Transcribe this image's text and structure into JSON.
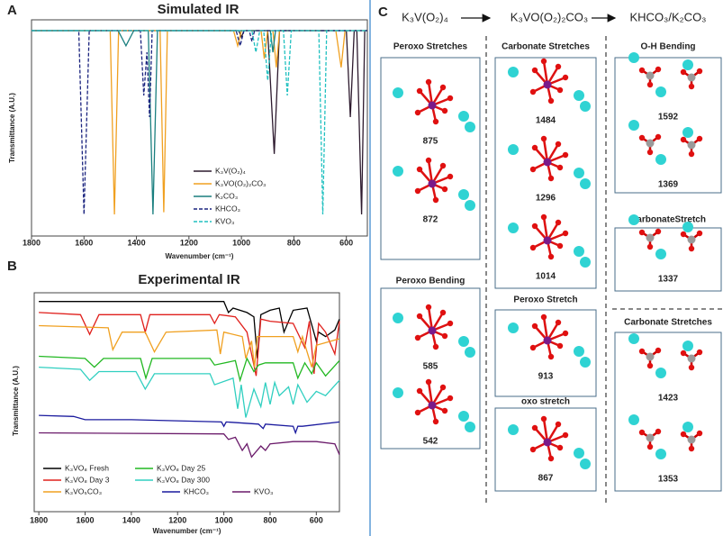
{
  "chart_data": [
    {
      "type": "line",
      "panel_label": "A",
      "title": "Simulated IR",
      "x_label": "Wavenumber (cm⁻¹)",
      "y_label": "Transmittance (A.U.)",
      "xlim": [
        1800,
        520
      ],
      "ylim": [
        0,
        1
      ],
      "xticks": [
        1800,
        1600,
        1400,
        1200,
        1000,
        800,
        600
      ],
      "series": [
        {
          "name": "K₃V(O₂)₄",
          "color": "#2d1a2e",
          "dash": false,
          "x": [
            1800,
            1010,
            1000,
            990,
            900,
            875,
            855,
            600,
            585,
            570,
            560,
            542,
            530,
            520
          ],
          "values": [
            0.95,
            0.95,
            0.92,
            0.95,
            0.95,
            0.38,
            0.95,
            0.95,
            0.55,
            0.95,
            0.95,
            0.1,
            0.95,
            0.95
          ]
        },
        {
          "name": "K₃VO(O₂)₂CO₃",
          "color": "#f0a020",
          "dash": false,
          "x": [
            1800,
            1500,
            1484,
            1468,
            1310,
            1296,
            1282,
            1030,
            1014,
            1000,
            925,
            913,
            900,
            880,
            867,
            855,
            640,
            620,
            605,
            520
          ],
          "values": [
            0.95,
            0.95,
            0.1,
            0.95,
            0.95,
            0.11,
            0.95,
            0.95,
            0.88,
            0.95,
            0.95,
            0.82,
            0.95,
            0.95,
            0.78,
            0.95,
            0.95,
            0.78,
            0.95,
            0.95
          ]
        },
        {
          "name": "K₂CO₃",
          "color": "#1a7f7f",
          "dash": false,
          "x": [
            1800,
            1470,
            1440,
            1410,
            1355,
            1337,
            1320,
            890,
            880,
            870,
            520
          ],
          "values": [
            0.95,
            0.95,
            0.88,
            0.95,
            0.95,
            0.1,
            0.95,
            0.95,
            0.85,
            0.95,
            0.95
          ]
        },
        {
          "name": "KHCO₃",
          "color": "#1a237e",
          "dash": true,
          "x": [
            1800,
            1620,
            1600,
            1580,
            1385,
            1372,
            1360,
            1350,
            1340,
            1020,
            1005,
            990,
            970,
            960,
            950,
            520
          ],
          "values": [
            0.95,
            0.95,
            0.1,
            0.95,
            0.95,
            0.65,
            0.85,
            0.55,
            0.95,
            0.95,
            0.88,
            0.95,
            0.95,
            0.9,
            0.95,
            0.95
          ]
        },
        {
          "name": "KVO₃",
          "color": "#20c0c0",
          "dash": true,
          "x": [
            1800,
            960,
            945,
            930,
            915,
            900,
            885,
            840,
            825,
            810,
            705,
            690,
            675,
            520
          ],
          "values": [
            0.95,
            0.95,
            0.85,
            0.95,
            0.95,
            0.72,
            0.95,
            0.95,
            0.65,
            0.95,
            0.95,
            0.1,
            0.95,
            0.95
          ]
        }
      ]
    },
    {
      "type": "line",
      "panel_label": "B",
      "title": "Experimental IR",
      "x_label": "Wavenumber (cm⁻¹)",
      "y_label": "Transmittance (A.U.)",
      "xlim": [
        1820,
        500
      ],
      "ylim": [
        0,
        10
      ],
      "xticks": [
        1800,
        1600,
        1400,
        1200,
        1000,
        800,
        600
      ],
      "series": [
        {
          "name": "K₃VO₈ Fresh",
          "color": "#000000",
          "dash": false,
          "x": [
            1800,
            1000,
            980,
            960,
            900,
            870,
            855,
            840,
            800,
            760,
            740,
            700,
            640,
            600,
            590,
            560,
            520,
            500
          ],
          "values": [
            9.6,
            9.6,
            9.1,
            9.3,
            9.1,
            8.9,
            7.0,
            9.0,
            9.2,
            9.3,
            8.2,
            9.2,
            9.3,
            7.8,
            8.2,
            8.0,
            8.3,
            8.8
          ]
        },
        {
          "name": "K₃VO₈ Day 3",
          "color": "#e0201c",
          "dash": false,
          "x": [
            1800,
            1620,
            1580,
            1540,
            1360,
            1340,
            1320,
            1060,
            1040,
            1020,
            950,
            900,
            860,
            840,
            800,
            700,
            650,
            630,
            610,
            590,
            560,
            520,
            500
          ],
          "values": [
            9.1,
            9.0,
            8.1,
            9.0,
            9.0,
            8.2,
            9.0,
            9.0,
            8.6,
            9.0,
            8.9,
            8.2,
            6.2,
            8.8,
            8.7,
            8.6,
            7.5,
            8.7,
            6.3,
            8.6,
            8.2,
            7.2,
            8.7
          ]
        },
        {
          "name": "K₃VO₅CO₃",
          "color": "#f0a020",
          "dash": false,
          "x": [
            1800,
            1500,
            1480,
            1440,
            1340,
            1300,
            1250,
            1030,
            1015,
            1000,
            920,
            905,
            880,
            867,
            855,
            700,
            680,
            660,
            620,
            600,
            500
          ],
          "values": [
            8.5,
            8.4,
            7.4,
            8.2,
            8.2,
            7.3,
            8.2,
            8.3,
            7.2,
            8.2,
            8.0,
            7.0,
            7.8,
            6.6,
            8.0,
            8.0,
            7.3,
            8.0,
            6.6,
            7.6,
            7.9
          ]
        },
        {
          "name": "K₃VO₈ Day 25",
          "color": "#22b822",
          "dash": false,
          "x": [
            1800,
            1600,
            1560,
            1520,
            1360,
            1337,
            1310,
            1060,
            1040,
            950,
            930,
            900,
            870,
            850,
            820,
            700,
            680,
            650,
            620,
            600,
            560,
            500
          ],
          "values": [
            7.1,
            7.0,
            6.6,
            7.0,
            7.0,
            6.1,
            7.0,
            7.0,
            6.7,
            6.9,
            6.0,
            7.0,
            6.4,
            6.7,
            6.8,
            6.8,
            6.1,
            6.8,
            6.3,
            6.8,
            6.2,
            6.9
          ]
        },
        {
          "name": "K₃VO₈ Day 300",
          "color": "#30cfc0",
          "dash": false,
          "x": [
            1800,
            1620,
            1580,
            1540,
            1380,
            1340,
            1300,
            1060,
            1040,
            960,
            940,
            925,
            905,
            870,
            840,
            820,
            800,
            780,
            760,
            720,
            700,
            680,
            640,
            600,
            560,
            500
          ],
          "values": [
            6.6,
            6.5,
            6.0,
            6.4,
            6.4,
            5.6,
            6.3,
            6.3,
            5.8,
            6.1,
            4.7,
            5.8,
            4.3,
            5.6,
            4.8,
            5.9,
            4.9,
            5.9,
            5.3,
            5.7,
            4.9,
            5.8,
            5.0,
            5.5,
            5.3,
            6.0
          ]
        },
        {
          "name": "KHCO₃",
          "color": "#1a1a9e",
          "dash": false,
          "x": [
            1800,
            1650,
            1600,
            1400,
            1010,
            1000,
            990,
            850,
            830,
            820,
            700,
            690,
            680,
            660,
            500
          ],
          "values": [
            4.4,
            4.35,
            4.2,
            4.2,
            4.1,
            3.9,
            4.1,
            4.0,
            3.8,
            4.0,
            3.9,
            3.6,
            3.9,
            3.9,
            4.1
          ]
        },
        {
          "name": "KVO₃",
          "color": "#6a1a6a",
          "dash": false,
          "x": [
            1800,
            1000,
            980,
            950,
            920,
            900,
            880,
            840,
            820,
            800,
            700,
            600,
            520,
            500
          ],
          "values": [
            3.6,
            3.55,
            3.3,
            3.4,
            2.8,
            3.1,
            2.5,
            3.0,
            2.8,
            3.1,
            3.2,
            3.2,
            3.1,
            2.6
          ]
        }
      ]
    }
  ],
  "diagram": {
    "panel_label": "C",
    "headers": [
      "K₃V(O₂)₄",
      "K₃VO(O₂)₂CO₃",
      "KHCO₃/K₂CO₃"
    ],
    "columns": [
      {
        "groups": [
          {
            "title": "Peroxo Stretches",
            "modes": [
              875,
              872
            ]
          },
          {
            "title": "Peroxo Bending",
            "modes": [
              585,
              542
            ]
          }
        ]
      },
      {
        "groups": [
          {
            "title": "Carbonate Stretches",
            "modes": [
              1484,
              1296,
              1014
            ]
          },
          {
            "title": "Peroxo Stretch",
            "modes": [
              913
            ]
          },
          {
            "title": "oxo stretch",
            "modes": [
              867
            ]
          }
        ]
      },
      {
        "groups": [
          {
            "title": "O-H Bending",
            "modes": [
              1592,
              1369
            ]
          },
          {
            "title": "CarbonateStretch",
            "modes": [
              1337
            ]
          },
          {
            "title": "Carbonate Stretches",
            "modes": [
              1423,
              1353
            ]
          }
        ]
      }
    ]
  }
}
